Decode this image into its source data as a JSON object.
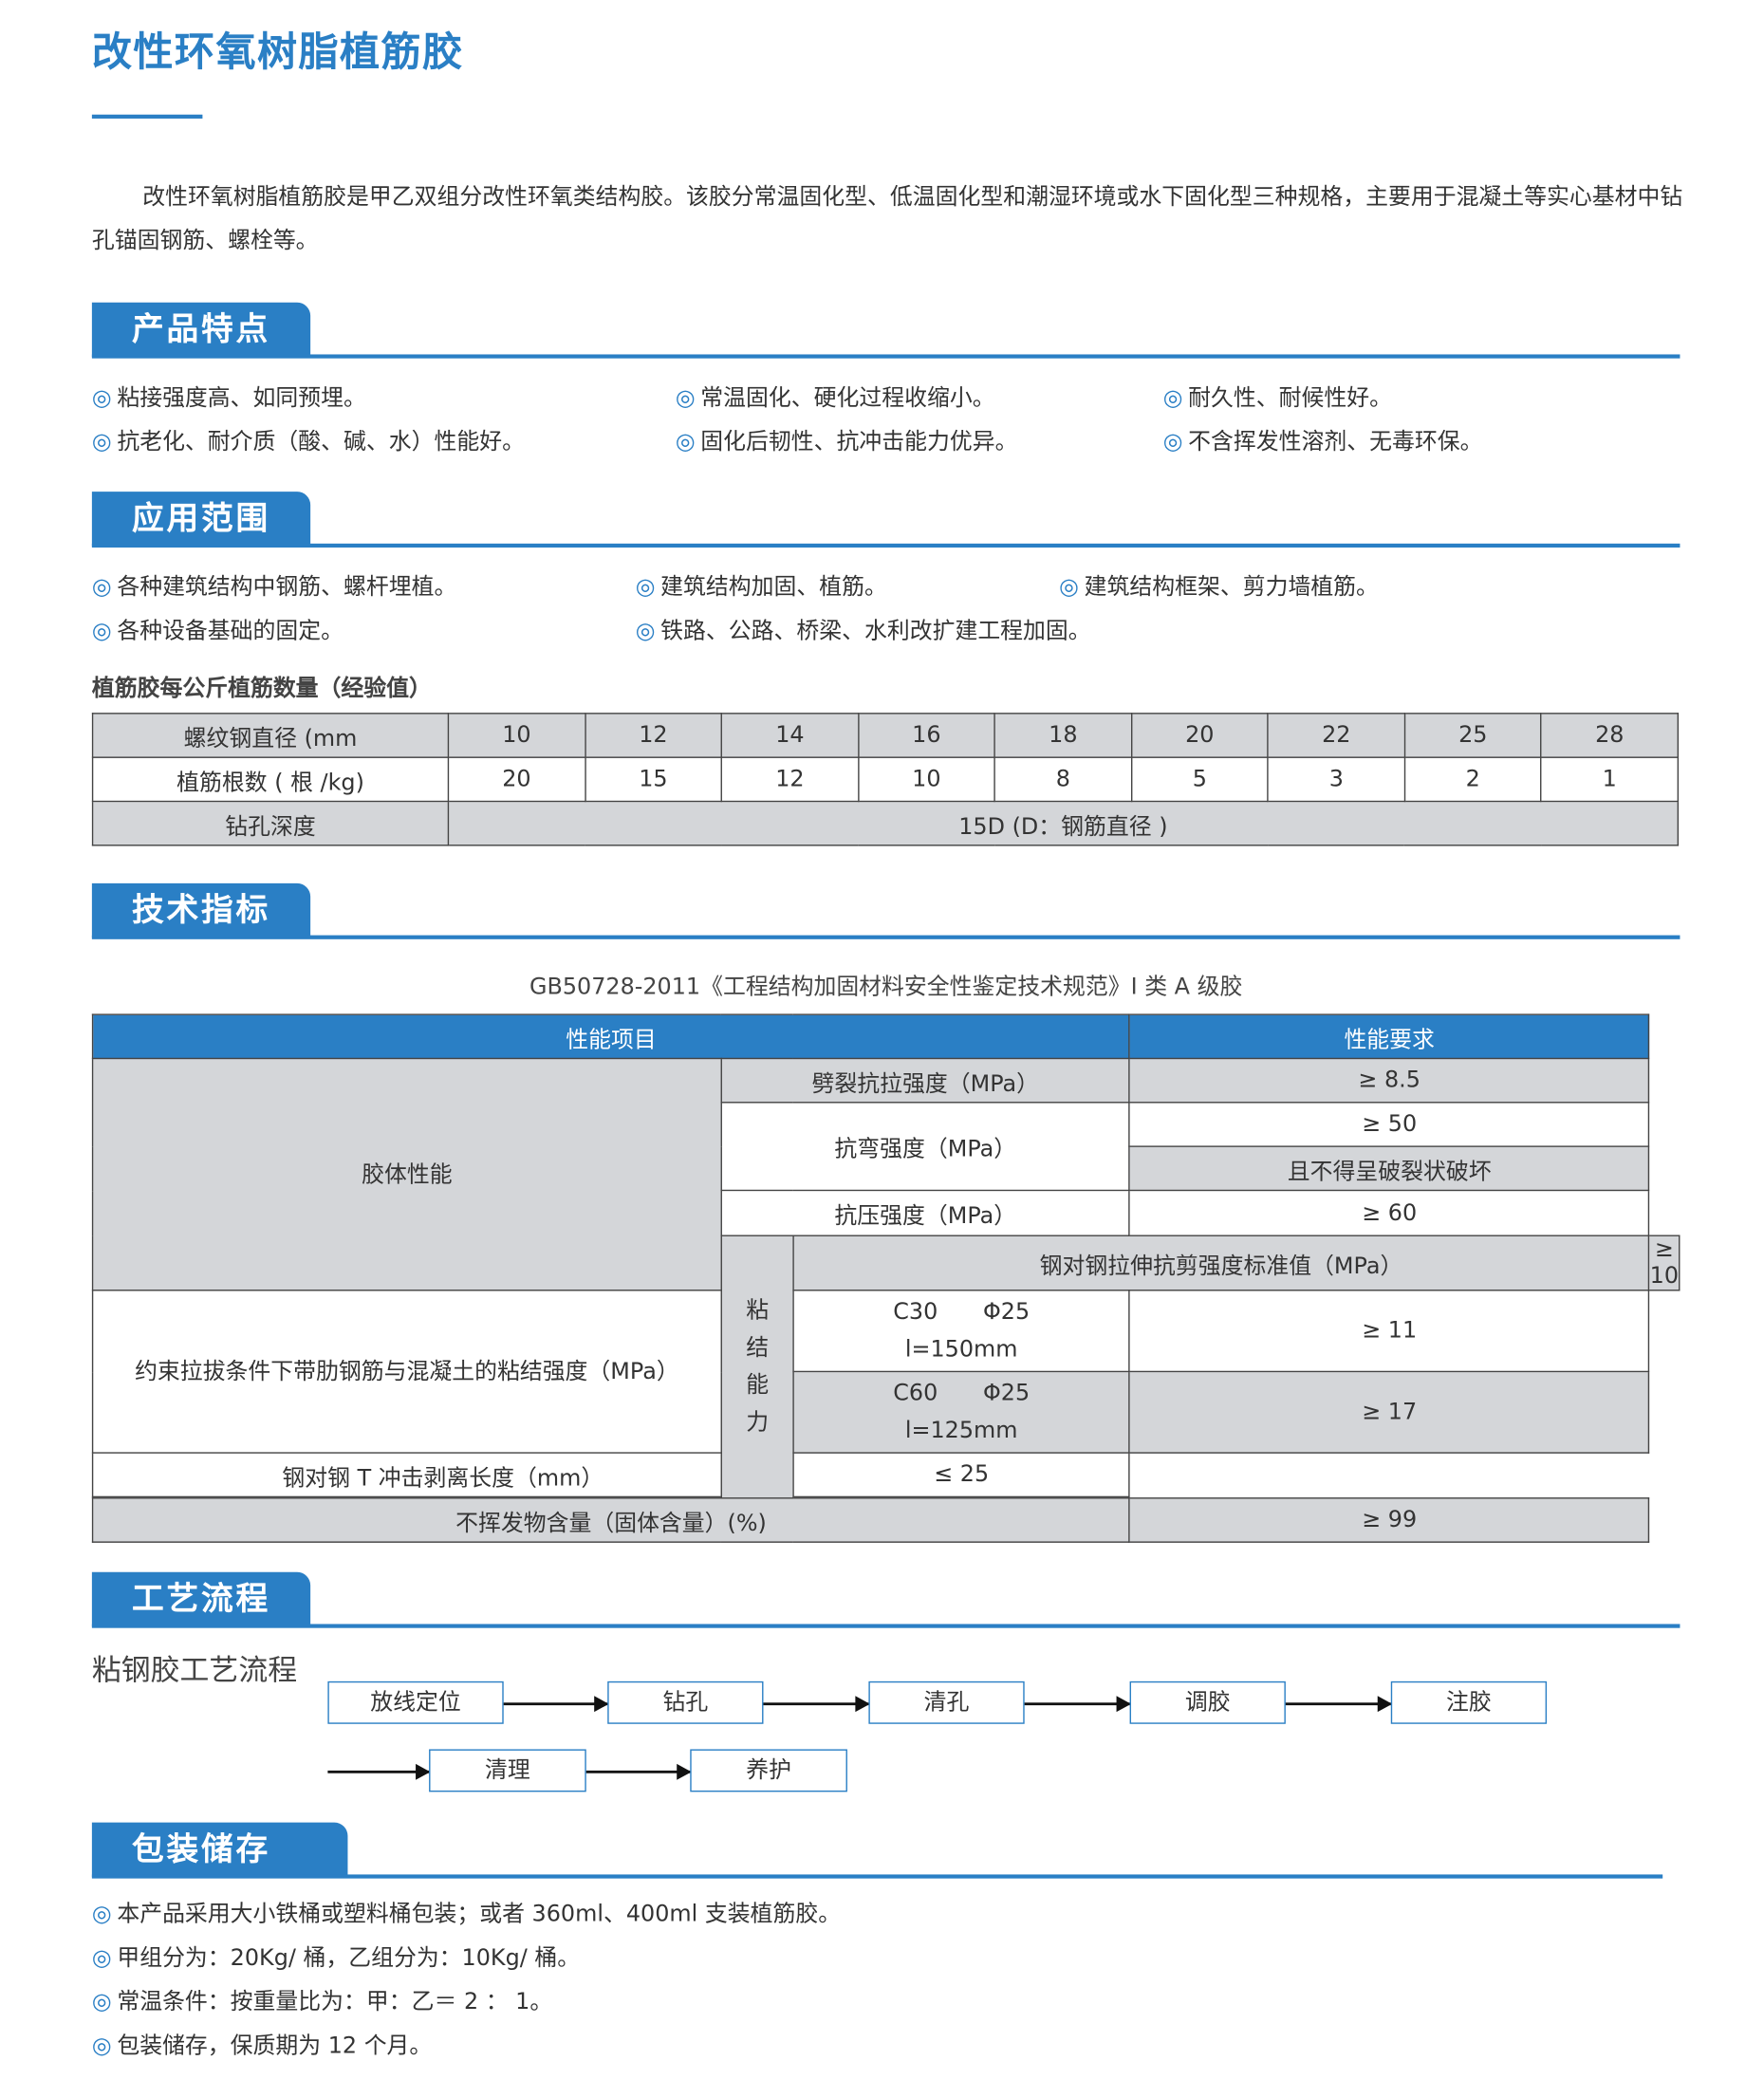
{
  "title": "改性环氧树脂植筋胶",
  "intro": "改性环氧树脂植筋胶是甲乙双组分改性环氧类结构胶。该胶分常温固化型、低温固化型和潮湿环境或水下固化型三种规格，主要用于混凝土等实心基材中钻孔锚固钢筋、螺栓等。",
  "bullet_icon": "◎",
  "features": {
    "heading": "产品特点",
    "items": [
      "粘接强度高、如同预埋。",
      "常温固化、硬化过程收缩小。",
      "耐久性、耐候性好。",
      "抗老化、耐介质（酸、碱、水）性能好。",
      "固化后韧性、抗冲击能力优异。",
      "不含挥发性溶剂、无毒环保。"
    ]
  },
  "applications": {
    "heading": "应用范围",
    "items": [
      "各种建筑结构中钢筋、螺杆埋植。",
      "建筑结构加固、植筋。",
      "建筑结构框架、剪力墙植筋。",
      "各种设备基础的固定。",
      "铁路、公路、桥梁、水利改扩建工程加固。"
    ]
  },
  "rebar_table": {
    "caption": "植筋胶每公斤植筋数量（经验值）",
    "row_labels": [
      "螺纹钢直径 (mm",
      "植筋根数 ( 根 /kg)",
      "钻孔深度"
    ],
    "diameters": [
      "10",
      "12",
      "14",
      "16",
      "18",
      "20",
      "22",
      "25",
      "28"
    ],
    "counts": [
      "20",
      "15",
      "12",
      "10",
      "8",
      "5",
      "3",
      "2",
      "1"
    ],
    "depth": "15D (D：钢筋直径 )"
  },
  "tech": {
    "heading": "技术指标",
    "caption": "GB50728-2011《工程结构加固材料安全性鉴定技术规范》I 类 A 级胶",
    "headers": [
      "性能项目",
      "性能要求"
    ],
    "group1": "胶体性能",
    "group2": "粘结能力",
    "rows": {
      "split": "劈裂抗拉强度（MPa）",
      "split_v": "≥ 8.5",
      "bend": "抗弯强度（MPa）",
      "bend_v1": "≥ 50",
      "bend_v2": "且不得呈破裂状破坏",
      "comp": "抗压强度（MPa）",
      "comp_v": "≥ 60",
      "shear": "钢对钢拉伸抗剪强度标准值（MPa）",
      "shear_v": "≥ 10",
      "bond": "约束拉拔条件下带肋钢筋与混凝土的粘结强度（MPa）",
      "c30": "C30　　Φ25\nl=150mm",
      "c30_v": "≥ 11",
      "c60": "C60　　Φ25\nl=125mm",
      "c60_v": "≥ 17",
      "peel": "钢对钢 T 冲击剥离长度（mm）",
      "peel_v": "≤ 25",
      "solid": "不挥发物含量（固体含量）(%)",
      "solid_v": "≥ 99"
    }
  },
  "process": {
    "heading": "工艺流程",
    "subtitle": "粘钢胶工艺流程",
    "steps": [
      "放线定位",
      "钻孔",
      "清孔",
      "调胶",
      "注胶",
      "清理",
      "养护"
    ]
  },
  "storage": {
    "heading": "包装储存",
    "items": [
      "本产品采用大小铁桶或塑料桶包装；或者 360ml、400ml 支装植筋胶。",
      "甲组分为：20Kg/ 桶，乙组分为：10Kg/ 桶。",
      "常温条件：按重量比为：甲：乙＝ 2 ： 1。",
      "包装储存，保质期为 12 个月。"
    ]
  },
  "colors": {
    "accent": "#2a7fc5",
    "cell_gray": "#d4d6d9"
  }
}
